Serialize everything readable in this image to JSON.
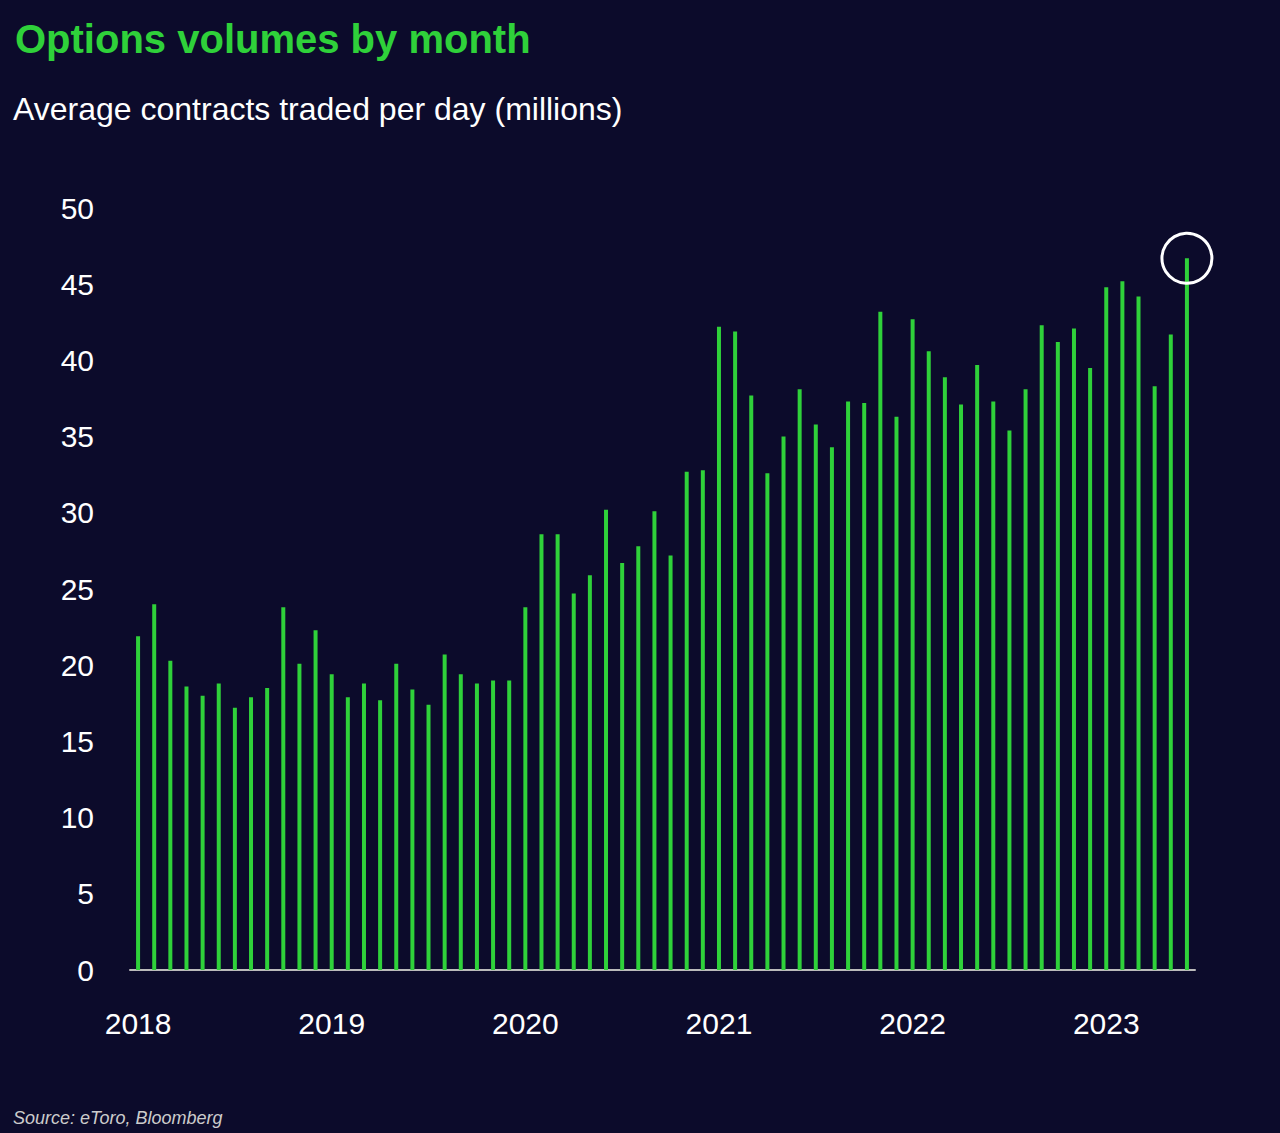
{
  "chart_data": {
    "type": "bar",
    "title": "Options volumes by month",
    "subtitle": "Average contracts traded per day (millions)",
    "source": "Source: eToro, Bloomberg",
    "categories": [
      "2018",
      null,
      null,
      null,
      null,
      null,
      null,
      null,
      null,
      null,
      null,
      null,
      "2019",
      null,
      null,
      null,
      null,
      null,
      null,
      null,
      null,
      null,
      null,
      null,
      "2020",
      null,
      null,
      null,
      null,
      null,
      null,
      null,
      null,
      null,
      null,
      null,
      "2021",
      null,
      null,
      null,
      null,
      null,
      null,
      null,
      null,
      null,
      null,
      null,
      "2022",
      null,
      null,
      null,
      null,
      null,
      null,
      null,
      null,
      null,
      null,
      null,
      "2023",
      null,
      null,
      null,
      null,
      null
    ],
    "values": [
      21.9,
      24.0,
      20.3,
      18.6,
      18.0,
      18.8,
      17.2,
      17.9,
      18.5,
      23.8,
      20.1,
      22.3,
      19.4,
      17.9,
      18.8,
      17.7,
      20.1,
      18.4,
      17.4,
      20.7,
      19.4,
      18.8,
      19.0,
      19.0,
      23.8,
      28.6,
      28.6,
      24.7,
      25.9,
      30.2,
      26.7,
      27.8,
      30.1,
      27.2,
      32.7,
      32.8,
      42.2,
      41.9,
      37.7,
      32.6,
      35.0,
      38.1,
      35.8,
      34.3,
      37.3,
      37.2,
      43.2,
      36.3,
      42.7,
      40.6,
      38.9,
      37.1,
      39.7,
      37.3,
      35.4,
      38.1,
      42.3,
      41.2,
      42.1,
      39.5,
      44.8,
      45.2,
      44.2,
      38.3,
      41.7,
      46.7
    ],
    "color": "#2fd13a",
    "ylim": [
      0,
      50
    ],
    "yticks": [
      0,
      5,
      10,
      15,
      20,
      25,
      30,
      35,
      40,
      45,
      50
    ],
    "grid": false
  }
}
